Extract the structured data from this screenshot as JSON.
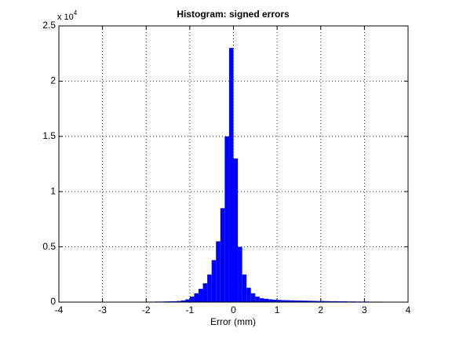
{
  "chart_data": {
    "type": "histogram",
    "title": "Histogram: signed errors",
    "xlabel": "Error (mm)",
    "y_multiplier_base": "x 10",
    "y_multiplier_exponent": "4",
    "bins": [
      -2.0,
      -1.9,
      -1.8,
      -1.7,
      -1.6,
      -1.5,
      -1.4,
      -1.3,
      -1.2,
      -1.1,
      -1.0,
      -0.9,
      -0.8,
      -0.7,
      -0.6,
      -0.5,
      -0.4,
      -0.3,
      -0.2,
      -0.1,
      0.0,
      0.1,
      0.2,
      0.3,
      0.4,
      0.5,
      0.6,
      0.7,
      0.8,
      0.9,
      1.0,
      1.1,
      1.2,
      1.3,
      1.4,
      1.5,
      1.6,
      1.7,
      1.8,
      1.9,
      2.0,
      2.1,
      2.2,
      2.3,
      2.4,
      2.5,
      2.6,
      2.7,
      2.8,
      2.9,
      3.0,
      3.1,
      3.2,
      3.3,
      3.4,
      3.5,
      3.6,
      3.7
    ],
    "counts": [
      40,
      40,
      50,
      50,
      60,
      70,
      80,
      100,
      150,
      250,
      500,
      800,
      1200,
      1700,
      2500,
      3800,
      5500,
      8500,
      15000,
      23000,
      13000,
      5000,
      2500,
      1300,
      800,
      500,
      350,
      300,
      250,
      220,
      200,
      180,
      170,
      160,
      150,
      140,
      130,
      120,
      110,
      100,
      100,
      90,
      80,
      80,
      70,
      70,
      60,
      60,
      50,
      50,
      50,
      40,
      40,
      40,
      30,
      30,
      30
    ],
    "color": "#0000ff",
    "xlim": [
      -4,
      4
    ],
    "xticks": [
      -4,
      -3,
      -2,
      -1,
      0,
      1,
      2,
      3,
      4
    ],
    "ylim": [
      0,
      25000
    ],
    "yticks": [
      0,
      {
        "value": 5000,
        "label": "0.5"
      },
      {
        "value": 10000,
        "label": "1"
      },
      {
        "value": 15000,
        "label": "1.5"
      },
      {
        "value": 20000,
        "label": "2"
      },
      {
        "value": 25000,
        "label": "2.5"
      }
    ],
    "grid": true
  }
}
